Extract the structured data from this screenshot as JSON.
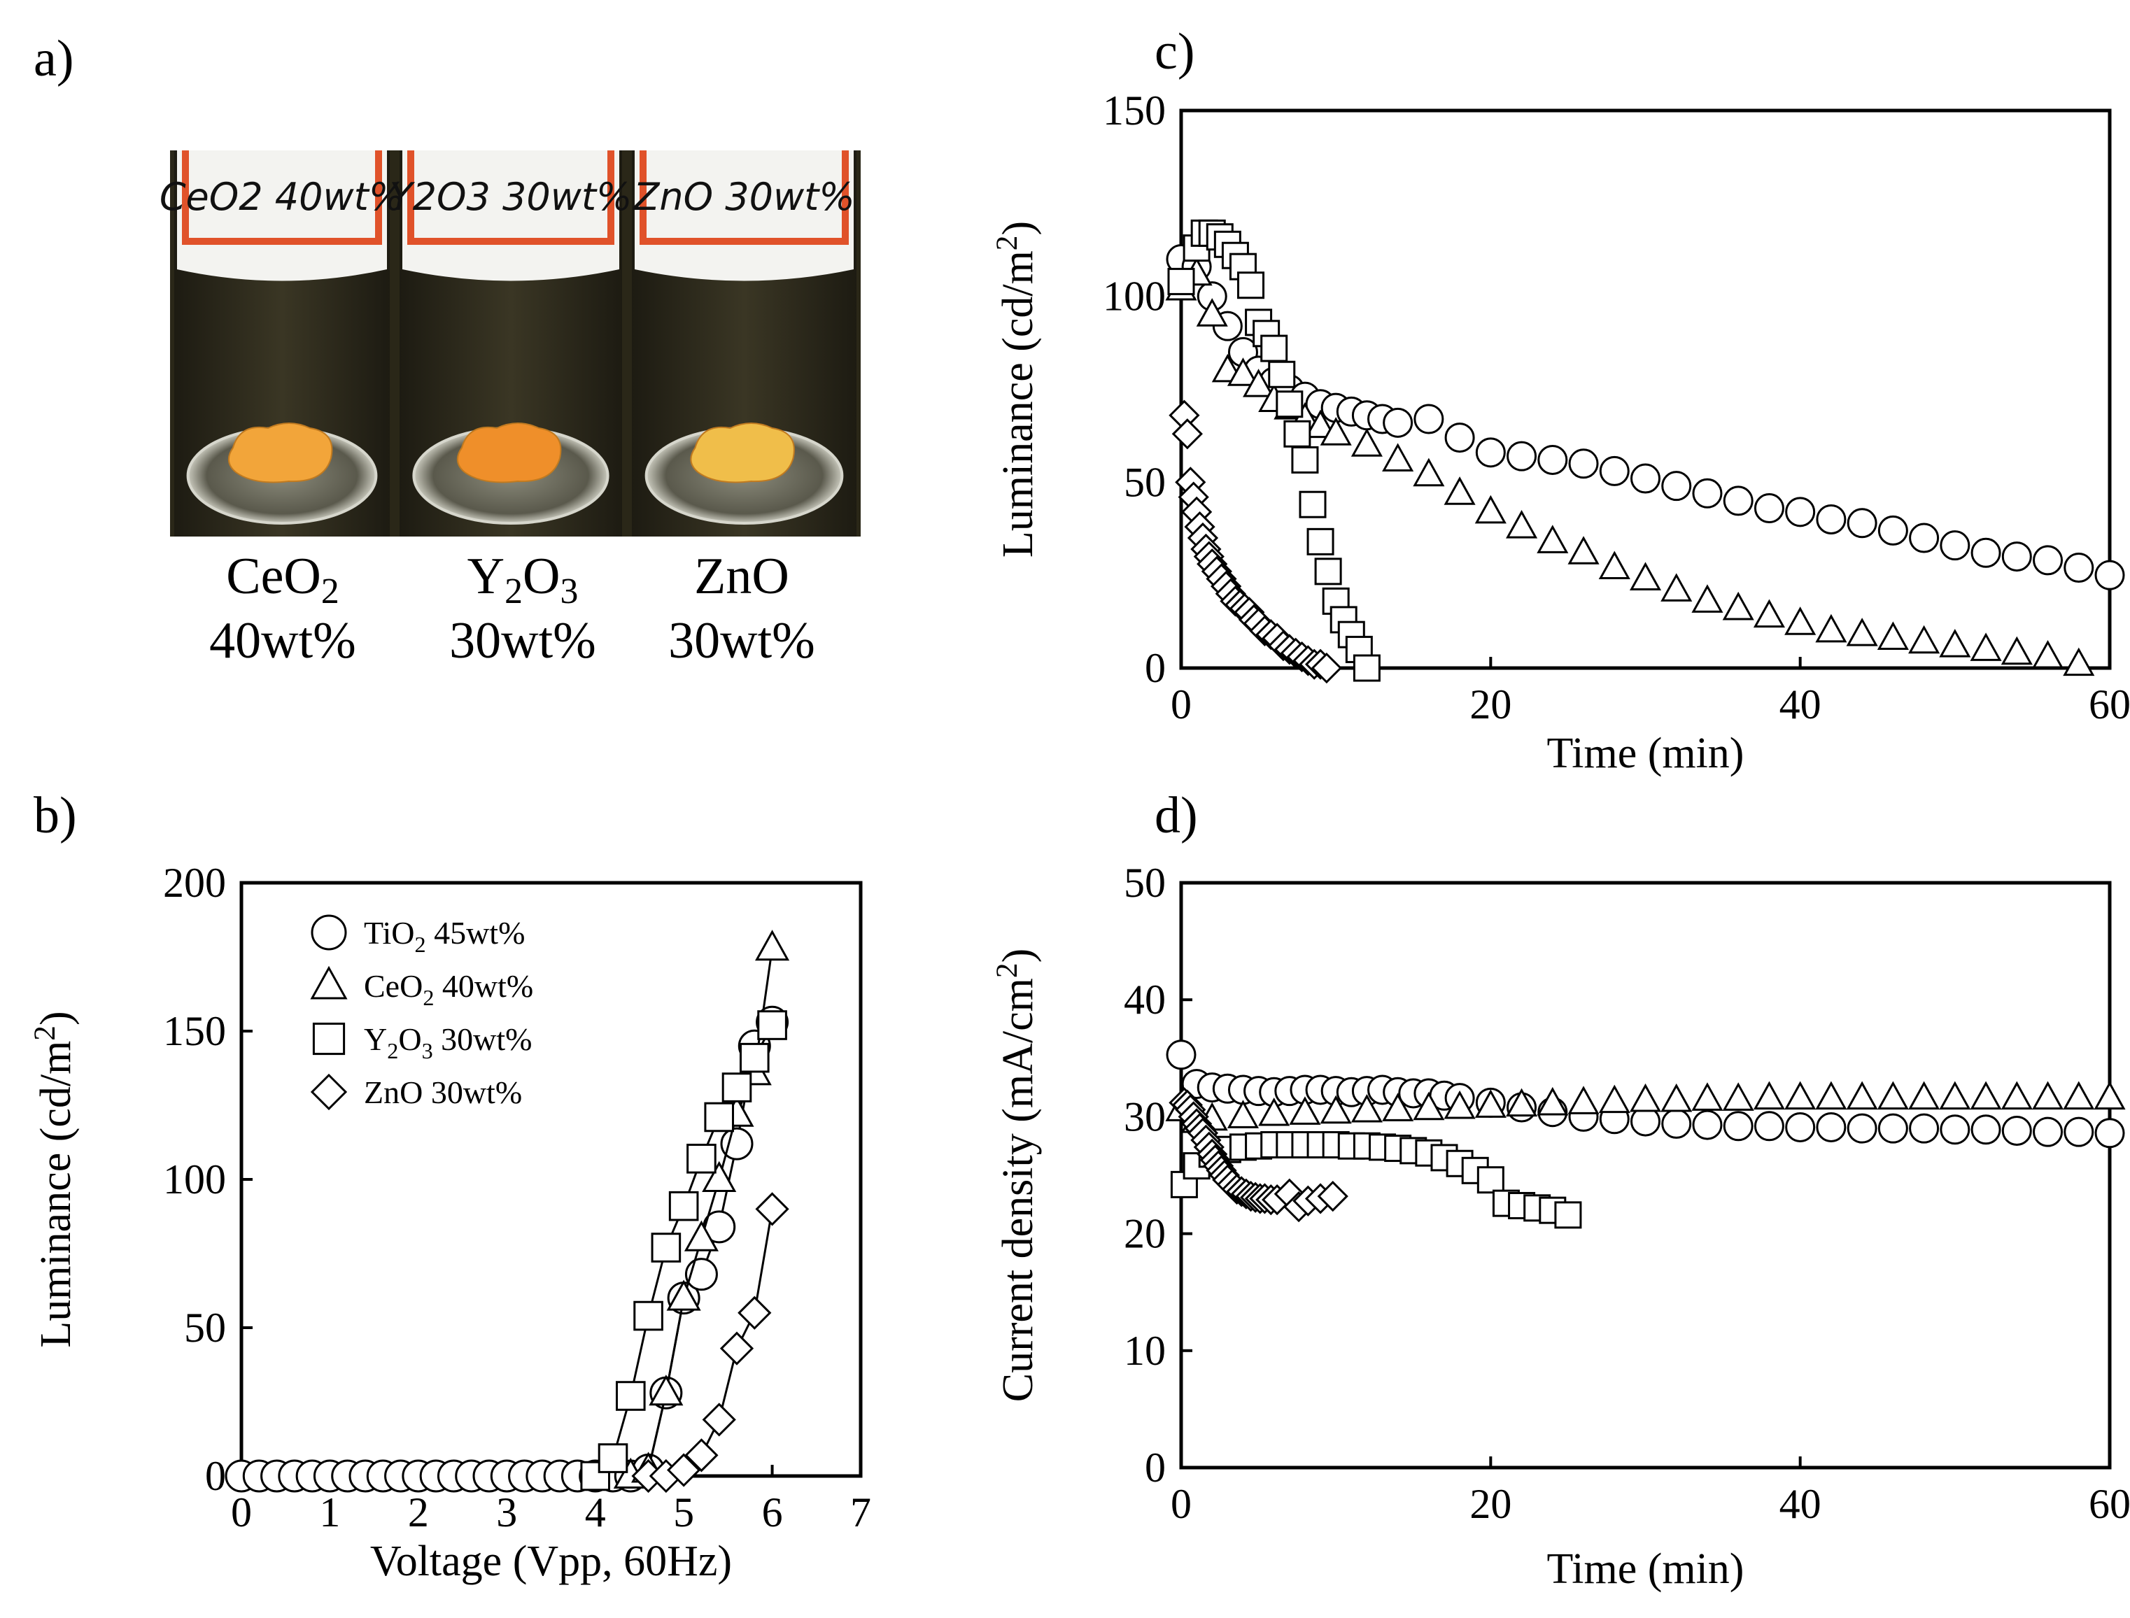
{
  "panels": {
    "a": {
      "label": "a)",
      "photo_label_text": [
        "CeO2 40wt%",
        "Y2O3 30wt%",
        "ZnO 30wt%"
      ],
      "samples": [
        {
          "formula": "CeO",
          "sub": "2",
          "after": "",
          "wt": "40wt%",
          "powder_color": "#f2a53a"
        },
        {
          "formula": "Y",
          "sub": "2",
          "after": "O",
          "sub2": "3",
          "wt": "30wt%",
          "powder_color": "#ef8f2a"
        },
        {
          "formula": "ZnO",
          "sub": "",
          "after": "",
          "wt": "30wt%",
          "powder_color": "#f0be4a"
        }
      ]
    },
    "b": {
      "label": "b)"
    },
    "c": {
      "label": "c)"
    },
    "d": {
      "label": "d)"
    }
  },
  "colors": {
    "label_band": "#e0522a",
    "label_bg": "#f3f3f0",
    "photo_bg": "#2a2718",
    "stroke": "#000000",
    "marker_fill": "#ffffff"
  },
  "chart_data": [
    {
      "id": "b",
      "type": "line",
      "xlabel": "Voltage (Vpp, 60Hz)",
      "ylabel_main": "Luminance (cd/m",
      "ylabel_sup": "2",
      "ylabel_end": ")",
      "xlim": [
        0,
        7
      ],
      "ylim": [
        0,
        200
      ],
      "xticks": [
        0,
        1,
        2,
        3,
        4,
        5,
        6,
        7
      ],
      "yticks": [
        0,
        50,
        100,
        150,
        200
      ],
      "legend_position": "top-left",
      "series": [
        {
          "name": "TiO2 45wt%",
          "legend_formula": "TiO",
          "legend_sub": "2",
          "legend_after": " 45wt%",
          "marker": "circle",
          "x": [
            0,
            0.2,
            0.4,
            0.6,
            0.8,
            1.0,
            1.2,
            1.4,
            1.6,
            1.8,
            2.0,
            2.2,
            2.4,
            2.6,
            2.8,
            3.0,
            3.2,
            3.4,
            3.6,
            3.8,
            4.0,
            4.2,
            4.4,
            4.6,
            4.8,
            5.0,
            5.2,
            5.4,
            5.6,
            5.8,
            6.0
          ],
          "y": [
            0,
            0,
            0,
            0,
            0,
            0,
            0,
            0,
            0,
            0,
            0,
            0,
            0,
            0,
            0,
            0,
            0,
            0,
            0,
            0,
            0,
            0,
            0,
            2,
            28,
            60,
            68,
            84,
            112,
            145,
            153
          ]
        },
        {
          "name": "CeO2 40wt%",
          "legend_formula": "CeO",
          "legend_sub": "2",
          "legend_after": " 40wt%",
          "marker": "triangle",
          "x": [
            4.4,
            4.6,
            4.8,
            5.0,
            5.2,
            5.4,
            5.6,
            5.8,
            6.0
          ],
          "y": [
            0,
            2,
            28,
            60,
            80,
            100,
            122,
            136,
            178
          ]
        },
        {
          "name": "Y2O3 30wt%",
          "legend_formula": "Y",
          "legend_sub": "2",
          "legend_mid": "O",
          "legend_sub2": "3",
          "legend_after": " 30wt%",
          "marker": "square",
          "x": [
            4.0,
            4.2,
            4.4,
            4.6,
            4.8,
            5.0,
            5.2,
            5.4,
            5.6,
            5.8,
            6.0
          ],
          "y": [
            0,
            6,
            27,
            54,
            77,
            91,
            107,
            121,
            131,
            141,
            152
          ]
        },
        {
          "name": "ZnO 30wt%",
          "legend_formula": "ZnO",
          "legend_sub": "",
          "legend_after": " 30wt%",
          "marker": "diamond",
          "x": [
            4.6,
            4.8,
            5.0,
            5.2,
            5.4,
            5.6,
            5.8,
            6.0
          ],
          "y": [
            0,
            0,
            2,
            7,
            19,
            43,
            55,
            90
          ]
        }
      ]
    },
    {
      "id": "c",
      "type": "scatter",
      "xlabel": "Time (min)",
      "ylabel_main": "Luminance (cd/m",
      "ylabel_sup": "2",
      "ylabel_end": ")",
      "xlim": [
        0,
        60
      ],
      "ylim": [
        0,
        150
      ],
      "xticks": [
        0,
        20,
        40,
        60
      ],
      "yticks": [
        0,
        50,
        100,
        150
      ],
      "series": [
        {
          "name": "TiO2 45wt%",
          "marker": "circle",
          "x": [
            0,
            1,
            2,
            3,
            4,
            5,
            6,
            7,
            8,
            9,
            10,
            11,
            12,
            13,
            14,
            16,
            18,
            20,
            22,
            24,
            26,
            28,
            30,
            32,
            34,
            36,
            38,
            40,
            42,
            44,
            46,
            48,
            50,
            52,
            54,
            56,
            58,
            60
          ],
          "y": [
            110,
            108,
            100,
            92,
            85,
            80,
            77,
            75,
            73,
            71,
            70,
            69,
            68,
            67,
            66,
            67,
            62,
            58,
            57,
            56,
            55,
            53,
            51,
            49,
            47,
            45,
            43,
            42,
            40,
            39,
            37,
            35,
            33,
            31,
            30,
            29,
            27,
            25
          ]
        },
        {
          "name": "CeO2 40wt%",
          "marker": "triangle",
          "x": [
            0,
            1,
            2,
            3,
            4,
            5,
            6,
            7,
            8,
            9,
            10,
            12,
            14,
            16,
            18,
            20,
            22,
            24,
            26,
            28,
            30,
            32,
            34,
            36,
            38,
            40,
            42,
            44,
            46,
            48,
            50,
            52,
            54,
            56,
            58
          ],
          "y": [
            102,
            106,
            95,
            80,
            79,
            76,
            72,
            70,
            67,
            65,
            63,
            60,
            56,
            52,
            47,
            42,
            38,
            34,
            31,
            27,
            24,
            21,
            18,
            16,
            14,
            12,
            10,
            9,
            8,
            7,
            6,
            5,
            4,
            3,
            1
          ]
        },
        {
          "name": "Y2O3 30wt%",
          "marker": "square",
          "x": [
            0,
            1,
            1.5,
            2,
            2.5,
            3,
            3.5,
            4,
            4.5,
            5,
            5.5,
            6,
            6.5,
            7,
            7.5,
            8,
            8.5,
            9,
            9.5,
            10,
            10.5,
            11,
            11.5,
            12
          ],
          "y": [
            104,
            113,
            117,
            117,
            116,
            114,
            111,
            108,
            103,
            93,
            90,
            86,
            79,
            71,
            63,
            56,
            44,
            34,
            26,
            18,
            13,
            9,
            5,
            0
          ]
        },
        {
          "name": "ZnO 30wt%",
          "marker": "diamond",
          "x": [
            0.2,
            0.4,
            0.6,
            0.8,
            1.0,
            1.2,
            1.4,
            1.6,
            1.8,
            2.0,
            2.3,
            2.6,
            2.9,
            3.2,
            3.5,
            3.8,
            4.1,
            4.4,
            4.7,
            5.0,
            5.4,
            5.8,
            6.2,
            6.6,
            7.0,
            7.4,
            7.8,
            8.2,
            8.6,
            9.0,
            9.4
          ],
          "y": [
            68,
            63,
            50,
            46,
            42,
            38,
            35,
            32,
            30,
            28,
            26,
            24,
            22,
            20,
            18,
            17,
            16,
            15,
            13,
            12,
            10,
            9,
            8,
            6,
            5,
            4,
            3,
            2,
            1,
            1,
            0
          ]
        }
      ]
    },
    {
      "id": "d",
      "type": "scatter",
      "xlabel": "Time (min)",
      "ylabel_main": "Current density (mA/cm",
      "ylabel_sup": "2",
      "ylabel_end": ")",
      "xlim": [
        0,
        60
      ],
      "ylim": [
        0,
        50
      ],
      "xticks": [
        0,
        20,
        40,
        60
      ],
      "yticks": [
        0,
        10,
        20,
        30,
        40,
        50
      ],
      "series": [
        {
          "name": "TiO2 45wt%",
          "marker": "circle",
          "x": [
            0,
            1,
            2,
            3,
            4,
            5,
            6,
            7,
            8,
            9,
            10,
            11,
            12,
            13,
            14,
            15,
            16,
            17,
            18,
            20,
            22,
            24,
            26,
            28,
            30,
            32,
            34,
            36,
            38,
            40,
            42,
            44,
            46,
            48,
            50,
            52,
            54,
            56,
            58,
            60
          ],
          "y": [
            35.3,
            32.8,
            32.5,
            32.4,
            32.3,
            32.2,
            32.1,
            32.2,
            32.3,
            32.3,
            32.2,
            32.1,
            32.2,
            32.3,
            32.1,
            32.0,
            32.0,
            31.8,
            31.6,
            31.2,
            30.8,
            30.4,
            30.0,
            29.8,
            29.6,
            29.4,
            29.3,
            29.2,
            29.2,
            29.1,
            29.1,
            29.0,
            29.0,
            29.0,
            28.9,
            28.9,
            28.8,
            28.7,
            28.7,
            28.6
          ]
        },
        {
          "name": "CeO2 40wt%",
          "marker": "triangle",
          "x": [
            0,
            1,
            2,
            4,
            6,
            8,
            10,
            12,
            14,
            16,
            18,
            20,
            22,
            24,
            26,
            28,
            30,
            32,
            34,
            36,
            38,
            40,
            42,
            44,
            46,
            48,
            50,
            52,
            54,
            56,
            58,
            60
          ],
          "y": [
            30.6,
            29.6,
            29.8,
            30.0,
            30.2,
            30.3,
            30.4,
            30.5,
            30.6,
            30.7,
            30.8,
            30.9,
            31.0,
            31.1,
            31.2,
            31.3,
            31.4,
            31.4,
            31.5,
            31.5,
            31.6,
            31.6,
            31.6,
            31.6,
            31.6,
            31.6,
            31.6,
            31.6,
            31.6,
            31.6,
            31.6,
            31.6
          ]
        },
        {
          "name": "Y2O3 30wt%",
          "marker": "square",
          "x": [
            0.2,
            1,
            2,
            3,
            4,
            5,
            6,
            7,
            8,
            9,
            10,
            11,
            12,
            13,
            14,
            15,
            16,
            17,
            18,
            19,
            20,
            21,
            22,
            23,
            24,
            25
          ],
          "y": [
            24.2,
            25.8,
            26.8,
            27.2,
            27.4,
            27.5,
            27.6,
            27.6,
            27.6,
            27.6,
            27.6,
            27.5,
            27.5,
            27.4,
            27.3,
            27.1,
            26.9,
            26.5,
            26.0,
            25.4,
            24.6,
            22.6,
            22.4,
            22.2,
            22.0,
            21.6
          ]
        },
        {
          "name": "ZnO 30wt%",
          "marker": "diamond",
          "x": [
            0.2,
            0.4,
            0.6,
            0.8,
            1.0,
            1.2,
            1.4,
            1.6,
            1.8,
            2.0,
            2.2,
            2.4,
            2.6,
            2.8,
            3.0,
            3.3,
            3.6,
            3.9,
            4.2,
            4.5,
            4.8,
            5.1,
            5.4,
            5.8,
            6.2,
            7.0,
            7.6,
            8.2,
            9.0,
            9.8
          ],
          "y": [
            31.2,
            31.0,
            30.6,
            30.0,
            29.4,
            29.0,
            28.6,
            28.0,
            27.4,
            26.8,
            26.3,
            25.8,
            25.4,
            25.0,
            24.6,
            24.2,
            23.8,
            23.6,
            23.4,
            23.2,
            23.1,
            23.0,
            23.0,
            22.9,
            22.9,
            23.4,
            22.3,
            22.8,
            23.0,
            23.2
          ]
        }
      ]
    }
  ]
}
